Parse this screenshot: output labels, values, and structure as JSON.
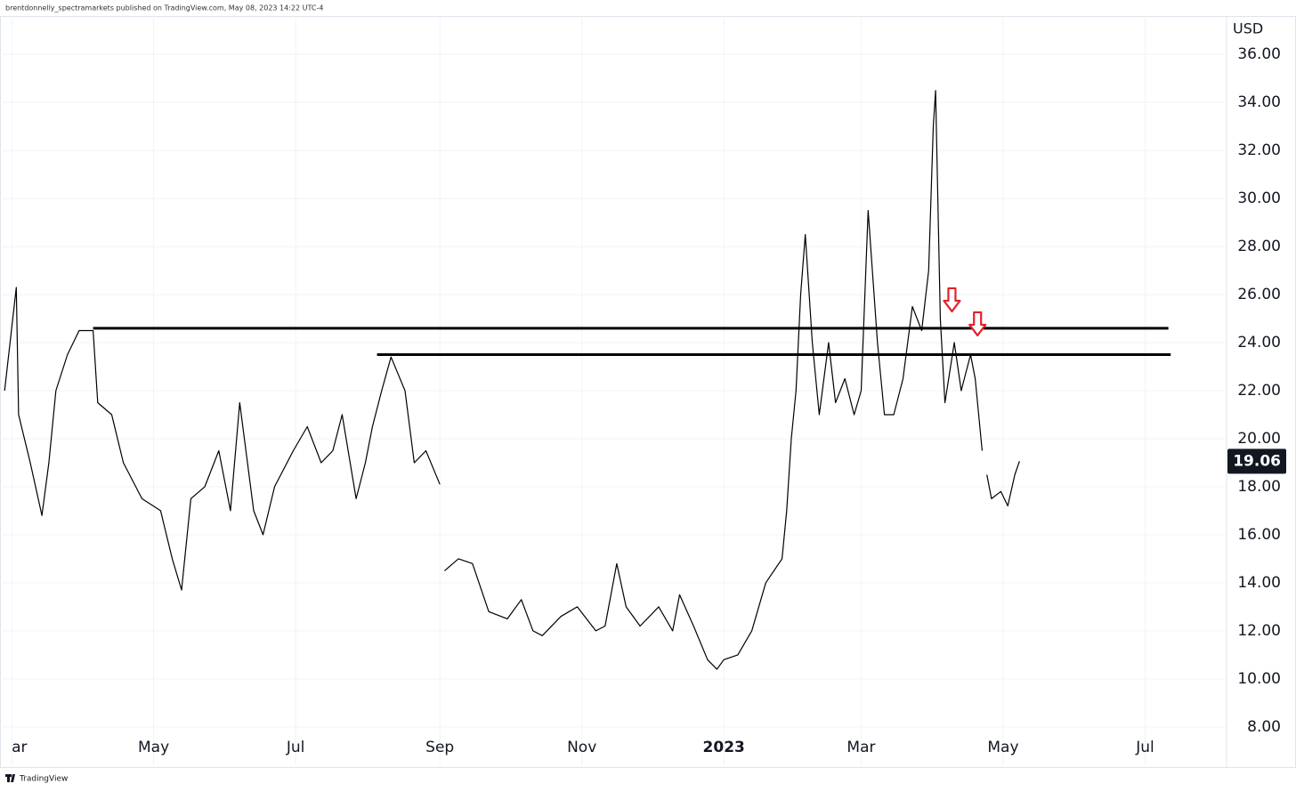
{
  "chart_data": {
    "type": "line",
    "header": "brentdonnelly_spectramarkets published on TradingView.com, May 08, 2023 14:22 UTC-4",
    "footer": "TradingView",
    "y_axis_label": "USD",
    "grid": true,
    "xlim": [
      -5,
      522
    ],
    "ylim": [
      6.4,
      37.6
    ],
    "xticks": [
      {
        "value": 0,
        "label": "ar"
      },
      {
        "value": 61,
        "label": "May"
      },
      {
        "value": 122,
        "label": "Jul"
      },
      {
        "value": 184,
        "label": "Sep"
      },
      {
        "value": 245,
        "label": "Nov"
      },
      {
        "value": 306,
        "label": "2023"
      },
      {
        "value": 365,
        "label": "Mar"
      },
      {
        "value": 426,
        "label": "May"
      },
      {
        "value": 487,
        "label": "Jul"
      }
    ],
    "yticks": [
      {
        "value": 8,
        "label": "8.00"
      },
      {
        "value": 10,
        "label": "10.00"
      },
      {
        "value": 12,
        "label": "12.00"
      },
      {
        "value": 14,
        "label": "14.00"
      },
      {
        "value": 16,
        "label": "16.00"
      },
      {
        "value": 18,
        "label": "18.00"
      },
      {
        "value": 20,
        "label": "20.00"
      },
      {
        "value": 22,
        "label": "22.00"
      },
      {
        "value": 24,
        "label": "24.00"
      },
      {
        "value": 26,
        "label": "26.00"
      },
      {
        "value": 28,
        "label": "28.00"
      },
      {
        "value": 30,
        "label": "30.00"
      },
      {
        "value": 32,
        "label": "32.00"
      },
      {
        "value": 34,
        "label": "34.00"
      },
      {
        "value": 36,
        "label": "36.00"
      }
    ],
    "series": [
      {
        "color": "#000000",
        "x": [
          -3,
          2,
          3,
          8,
          13,
          16,
          19,
          24,
          29,
          35,
          37,
          43,
          48,
          56,
          64,
          69,
          73,
          77,
          83,
          89,
          94,
          98,
          104,
          108,
          113,
          121,
          127,
          133,
          138,
          142,
          148,
          152,
          155,
          159,
          163,
          169,
          173,
          178,
          184,
          185,
          186,
          192,
          198,
          205,
          213,
          219,
          224,
          228,
          236,
          243,
          251,
          255,
          260,
          264,
          270,
          278,
          284,
          287,
          293,
          299,
          303,
          306,
          312,
          318,
          324,
          331,
          333,
          335,
          337,
          339,
          341,
          344,
          347,
          351,
          354,
          358,
          362,
          365,
          368,
          372,
          375,
          379,
          383,
          387,
          391,
          394,
          396,
          397,
          399,
          401,
          405,
          408,
          412,
          414,
          417,
          418,
          419,
          421,
          425,
          428,
          431,
          433
        ],
        "values": [
          22,
          26.3,
          21,
          19,
          16.8,
          19,
          22,
          23.5,
          24.5,
          24.5,
          21.5,
          21,
          19,
          17.5,
          17,
          15,
          13.7,
          17.5,
          18,
          19.5,
          17,
          21.5,
          17,
          16,
          18,
          19.5,
          20.5,
          19,
          19.5,
          21,
          17.5,
          19,
          20.5,
          22,
          23.4,
          22,
          19,
          19.5,
          18.1,
          null,
          14.5,
          15,
          14.8,
          12.8,
          12.5,
          13.3,
          12,
          11.8,
          12.6,
          13,
          12,
          12.2,
          14.8,
          13,
          12.2,
          13,
          12,
          13.5,
          12.2,
          10.8,
          10.4,
          10.8,
          11,
          12,
          14,
          15,
          17,
          20,
          22,
          26,
          28.5,
          24,
          21,
          24,
          21.5,
          22.5,
          21,
          22,
          29.5,
          24,
          21,
          21,
          22.5,
          25.5,
          24.5,
          27,
          33,
          34.5,
          25,
          21.5,
          24,
          22,
          23.5,
          22.5,
          19.5,
          null,
          18.5,
          17.5,
          17.8,
          17.2,
          18.5,
          19.06
        ]
      }
    ],
    "last_price": 19.06,
    "hlines": [
      {
        "value": 24.6,
        "x": [
          35,
          497
        ],
        "color": "#000000"
      },
      {
        "value": 23.5,
        "x": [
          157,
          498
        ],
        "color": "#000000"
      }
    ],
    "arrows": [
      {
        "x": 404,
        "y": 25.3,
        "color": "#e3212b"
      },
      {
        "x": 415,
        "y": 24.3,
        "color": "#e3212b"
      }
    ]
  }
}
